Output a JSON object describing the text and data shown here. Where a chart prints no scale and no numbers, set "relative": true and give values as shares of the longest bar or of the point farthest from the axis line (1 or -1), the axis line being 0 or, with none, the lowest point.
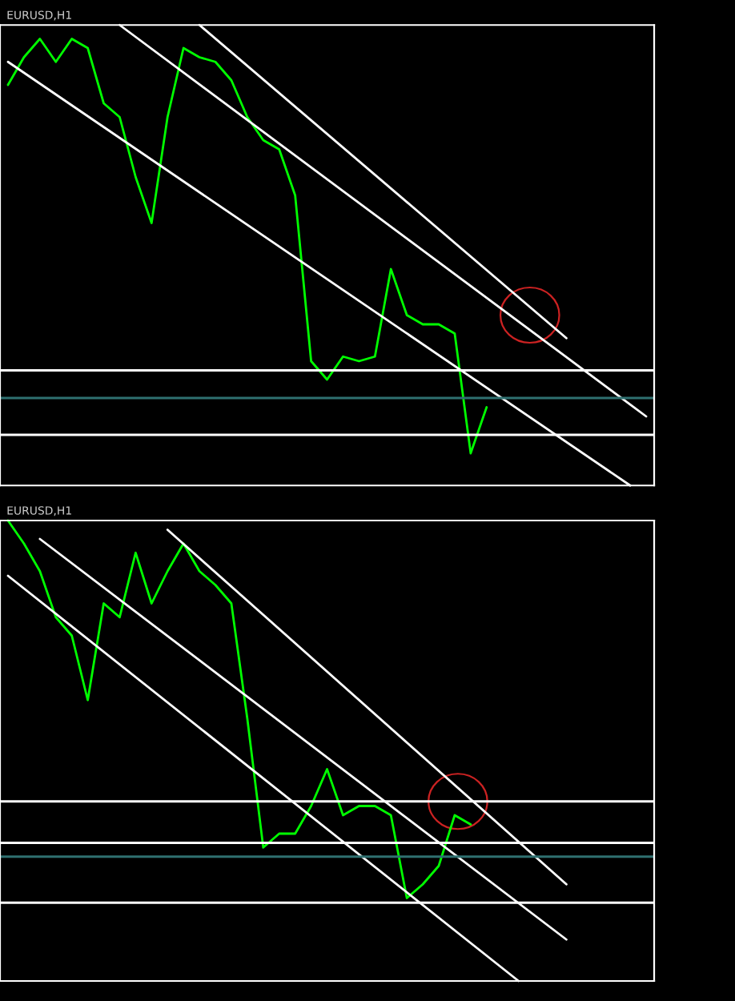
{
  "chart_data": [
    {
      "type": "line",
      "title": "EURUSD,H1",
      "relative": true,
      "categories": [
        null,
        null,
        null,
        null,
        null,
        null,
        null,
        null,
        null,
        null,
        null,
        null,
        null,
        null,
        null,
        null,
        null,
        null,
        null,
        null,
        null,
        null,
        null,
        null,
        null,
        null,
        null,
        null,
        null,
        null,
        null,
        null,
        null,
        null,
        null,
        null,
        null,
        null,
        null,
        null,
        null
      ],
      "series": [
        {
          "color": "#00ff00",
          "values": [
            0.87,
            0.93,
            0.97,
            0.92,
            0.97,
            0.95,
            0.83,
            0.8,
            0.67,
            0.57,
            0.8,
            0.95,
            0.93,
            0.92,
            0.88,
            0.8,
            0.75,
            0.73,
            0.63,
            0.27,
            0.23,
            0.28,
            0.27,
            0.28,
            0.47,
            0.37,
            0.35,
            0.35,
            0.33,
            0.07,
            0.17,
            null,
            null,
            null,
            null,
            null,
            null,
            null,
            null,
            null,
            null
          ]
        },
        {
          "color": "#ffffff",
          "values": [
            0.92,
            null,
            null,
            null,
            null,
            null,
            null,
            null,
            null,
            null,
            null,
            null,
            null,
            null,
            null,
            null,
            null,
            null,
            null,
            null,
            null,
            null,
            null,
            null,
            null,
            null,
            null,
            null,
            null,
            null,
            null,
            null,
            null,
            null,
            null,
            null,
            null,
            null,
            null,
            0.0,
            null
          ]
        },
        {
          "color": "#ffffff",
          "values": [
            null,
            null,
            null,
            null,
            null,
            null,
            null,
            1.0,
            null,
            null,
            null,
            null,
            null,
            null,
            null,
            null,
            null,
            null,
            null,
            null,
            null,
            null,
            null,
            null,
            null,
            null,
            null,
            null,
            null,
            null,
            null,
            null,
            null,
            null,
            null,
            null,
            null,
            null,
            null,
            null,
            0.15
          ]
        },
        {
          "color": "#ffffff",
          "values": [
            null,
            null,
            null,
            null,
            null,
            null,
            null,
            null,
            null,
            null,
            null,
            null,
            1.0,
            null,
            null,
            null,
            null,
            null,
            null,
            null,
            null,
            null,
            null,
            null,
            null,
            null,
            null,
            null,
            null,
            null,
            null,
            null,
            null,
            null,
            null,
            0.32,
            null,
            null,
            null,
            null,
            null
          ]
        }
      ],
      "ref_lines": [
        {
          "axis": "y",
          "value": 0.25,
          "color": "#ffffff"
        },
        {
          "axis": "y",
          "value": 0.19,
          "color": "#2f7070"
        },
        {
          "axis": "y",
          "value": 0.11,
          "color": "#ffffff"
        }
      ]
    },
    {
      "type": "line",
      "title": "EURUSD,H1",
      "relative": true,
      "categories": [
        null,
        null,
        null,
        null,
        null,
        null,
        null,
        null,
        null,
        null,
        null,
        null,
        null,
        null,
        null,
        null,
        null,
        null,
        null,
        null,
        null,
        null,
        null,
        null,
        null,
        null,
        null,
        null,
        null,
        null,
        null,
        null,
        null,
        null,
        null,
        null,
        null,
        null,
        null,
        null,
        null
      ],
      "series": [
        {
          "color": "#00ff00",
          "values": [
            1.0,
            0.95,
            0.89,
            0.79,
            0.75,
            0.61,
            0.82,
            0.79,
            0.93,
            0.82,
            0.89,
            0.95,
            0.89,
            0.86,
            0.82,
            0.57,
            0.29,
            0.32,
            0.32,
            0.38,
            0.46,
            0.36,
            0.38,
            0.38,
            0.36,
            0.18,
            0.21,
            0.25,
            0.36,
            0.34,
            null,
            null,
            null,
            null,
            null,
            null,
            null,
            null,
            null,
            null,
            null
          ]
        },
        {
          "color": "#ffffff",
          "values": [
            0.88,
            null,
            null,
            null,
            null,
            null,
            null,
            null,
            null,
            null,
            null,
            null,
            null,
            null,
            null,
            null,
            null,
            null,
            null,
            null,
            null,
            null,
            null,
            null,
            null,
            null,
            null,
            null,
            null,
            null,
            null,
            null,
            0.0,
            null,
            null,
            null,
            null,
            null,
            null,
            null,
            null
          ]
        },
        {
          "color": "#ffffff",
          "values": [
            null,
            null,
            0.96,
            null,
            null,
            null,
            null,
            null,
            null,
            null,
            null,
            null,
            null,
            null,
            null,
            null,
            null,
            null,
            null,
            null,
            null,
            null,
            null,
            null,
            null,
            null,
            null,
            null,
            null,
            null,
            null,
            null,
            null,
            null,
            null,
            0.09,
            null,
            null,
            null,
            null,
            null
          ]
        },
        {
          "color": "#ffffff",
          "values": [
            null,
            null,
            null,
            null,
            null,
            null,
            null,
            null,
            null,
            null,
            0.98,
            null,
            null,
            null,
            null,
            null,
            null,
            null,
            null,
            null,
            null,
            null,
            null,
            null,
            null,
            null,
            null,
            null,
            null,
            null,
            null,
            null,
            null,
            null,
            null,
            0.21,
            null,
            null,
            null,
            null,
            null
          ]
        }
      ],
      "ref_lines": [
        {
          "axis": "y",
          "value": 0.39,
          "color": "#ffffff"
        },
        {
          "axis": "y",
          "value": 0.3,
          "color": "#ffffff"
        },
        {
          "axis": "y",
          "value": 0.27,
          "color": "#2f7070"
        },
        {
          "axis": "y",
          "value": 0.17,
          "color": "#ffffff"
        }
      ]
    }
  ]
}
